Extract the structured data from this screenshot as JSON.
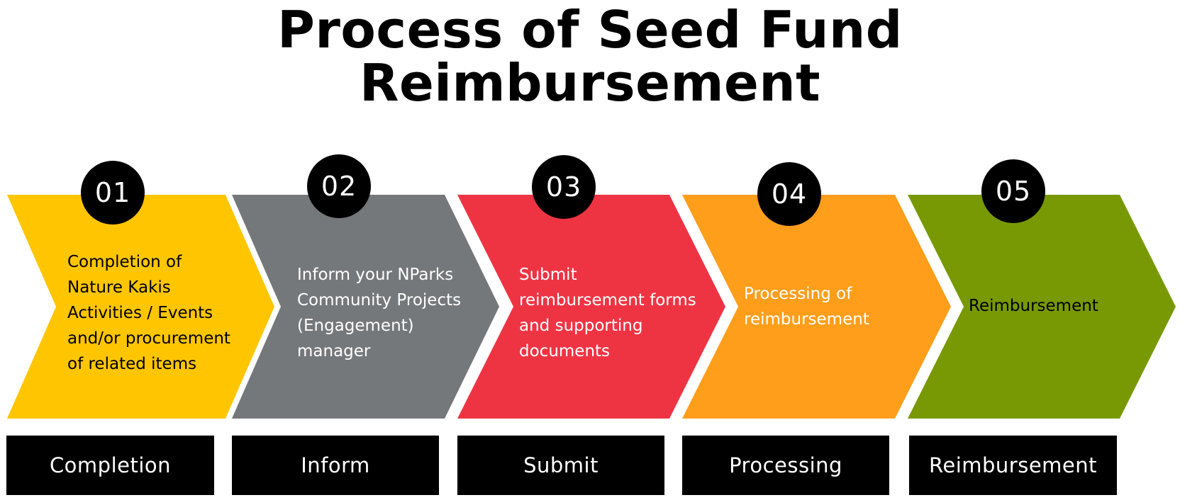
{
  "title": {
    "line1": "Process of Seed Fund",
    "line2": "Reimbursement"
  },
  "steps": [
    {
      "number": "01",
      "color": "#ffc600",
      "text_color": "#000000",
      "description": [
        "Completion of",
        "Nature Kakis",
        "Activities / Events",
        "and/or procurement",
        "of related items"
      ],
      "label": "Completion"
    },
    {
      "number": "02",
      "color": "#75787b",
      "text_color": "#ffffff",
      "description": [
        "Inform your NParks",
        "Community Projects",
        "(Engagement)",
        "manager"
      ],
      "label": "Inform"
    },
    {
      "number": "03",
      "color": "#ee3443",
      "text_color": "#ffffff",
      "description": [
        "Submit",
        "reimbursement forms",
        "and supporting",
        "documents"
      ],
      "label": "Submit"
    },
    {
      "number": "04",
      "color": "#ff9e1b",
      "text_color": "#ffffff",
      "description": [
        "Processing of",
        "reimbursement"
      ],
      "label": "Processing"
    },
    {
      "number": "05",
      "color": "#789904",
      "text_color": "#000000",
      "description": [
        "Reimbursement"
      ],
      "label": "Reimbursement"
    }
  ]
}
